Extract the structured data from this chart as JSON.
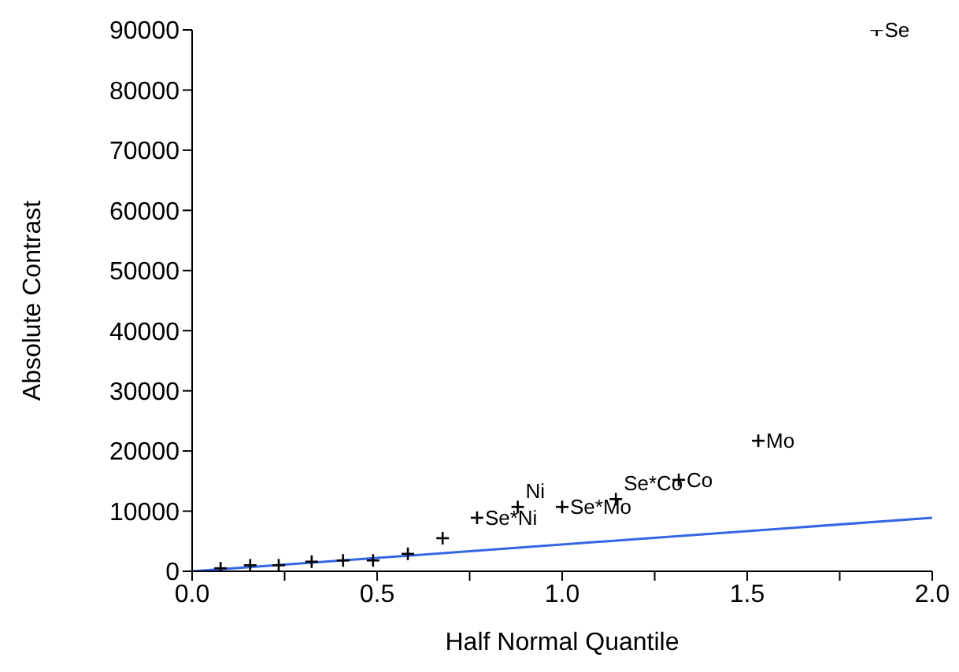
{
  "chart_data": {
    "type": "scatter",
    "xlabel": "Half Normal Quantile",
    "ylabel": "Absolute Contrast",
    "xlim": [
      0,
      2
    ],
    "ylim": [
      0,
      90000
    ],
    "xticks": [
      {
        "value": 0,
        "label": "0.0"
      },
      {
        "value": 0.25,
        "label": null
      },
      {
        "value": 0.5,
        "label": "0.5"
      },
      {
        "value": 0.75,
        "label": null
      },
      {
        "value": 1,
        "label": "1.0"
      },
      {
        "value": 1.25,
        "label": null
      },
      {
        "value": 1.5,
        "label": "1.5"
      },
      {
        "value": 1.75,
        "label": null
      },
      {
        "value": 2,
        "label": "2.0"
      }
    ],
    "yticks": [
      0,
      10000,
      20000,
      30000,
      40000,
      50000,
      60000,
      70000,
      80000,
      90000
    ],
    "series": [
      {
        "marker": "cross",
        "color": "#000000",
        "x": [
          0.077,
          0.157,
          0.234,
          0.323,
          0.408,
          0.489,
          0.583,
          0.677,
          0.77,
          0.88,
          1.0,
          1.145,
          1.315,
          1.53,
          1.85
        ],
        "values": [
          500,
          1000,
          1000,
          1600,
          1800,
          1800,
          2900,
          5500,
          8900,
          10700,
          10700,
          12000,
          15200,
          21700,
          90000
        ]
      },
      {
        "type": "line",
        "color": "#3366e6",
        "x": [
          0,
          2
        ],
        "values": [
          0,
          8900
        ]
      }
    ],
    "annotations": [
      {
        "text": "Se*Ni",
        "x": 0.77,
        "y": 8900
      },
      {
        "text": "Ni",
        "x": 0.88,
        "y": 10700
      },
      {
        "text": "Se*Mo",
        "x": 1.0,
        "y": 10700
      },
      {
        "text": "Se*Co",
        "x": 1.145,
        "y": 12000
      },
      {
        "text": "Co",
        "x": 1.315,
        "y": 15200
      },
      {
        "text": "Mo",
        "x": 1.53,
        "y": 21700
      },
      {
        "text": "Se",
        "x": 1.85,
        "y": 90000
      }
    ]
  }
}
